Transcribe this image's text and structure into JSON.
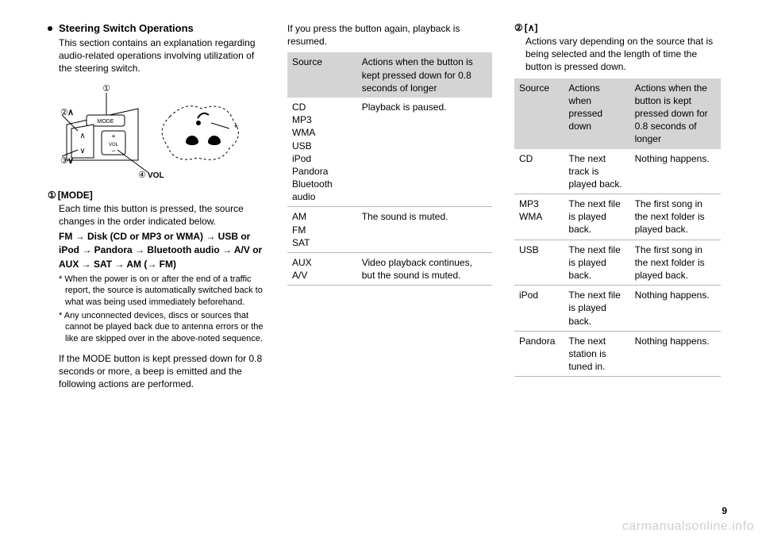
{
  "col1": {
    "heading": "Steering Switch Operations",
    "intro": "This section contains an explanation regarding audio-related operations involving utilization of the steering switch.",
    "diagram": {
      "labels": {
        "n1": "①",
        "n2": "②",
        "n3": "③",
        "n4": "④",
        "vol": "VOL",
        "mode": "MODE",
        "volplus": "+",
        "volminus": "−",
        "volword": "VOL",
        "star": "*"
      }
    },
    "mode": {
      "num": "①",
      "label": "[MODE]",
      "body": "Each time this button is pressed, the source changes in the order indicated below.",
      "sequence": "FM → Disk (CD or MP3 or WMA) → USB or iPod → Pandora → Bluetooth audio → A/V or AUX → SAT → AM (→ FM)",
      "foot1": "* When the power is on or after the end of a traffic report, the source is automatically switched back to what was being used immediately beforehand.",
      "foot2": "* Any unconnected devices, discs or sources that cannot be played back due to antenna errors or the like are skipped over in the above-noted sequence.",
      "para": "If the MODE button is kept pressed down for 0.8 seconds or more, a beep is emitted and the following actions are performed."
    }
  },
  "col2": {
    "intro": "If you press the button again, playback is resumed.",
    "table": {
      "head_source": "Source",
      "head_action": "Actions when the button is kept pressed down for 0.8 seconds of longer",
      "rows": [
        {
          "source": "CD\nMP3\nWMA\nUSB\niPod\nPandora\nBluetooth audio",
          "action": "Playback is paused."
        },
        {
          "source": "AM\nFM\nSAT",
          "action": "The sound is muted."
        },
        {
          "source": "AUX\nA/V",
          "action": "Video playback continues, but the sound is muted."
        }
      ]
    }
  },
  "col3": {
    "num": "②",
    "label": "[∧]",
    "intro": "Actions vary depending on the source that is being selected and the length of time the button is pressed down.",
    "table": {
      "head_source": "Source",
      "head_a1": "Actions when pressed down",
      "head_a2": "Actions when the button is kept pressed down for 0.8 seconds of longer",
      "rows": [
        {
          "s": "CD",
          "a1": "The next track is played back.",
          "a2": "Nothing happens."
        },
        {
          "s": "MP3\nWMA",
          "a1": "The next file is played back.",
          "a2": "The first song in the next folder is played back."
        },
        {
          "s": "USB",
          "a1": "The next file is played back.",
          "a2": "The first song in the next folder is played back."
        },
        {
          "s": "iPod",
          "a1": "The next file is played back.",
          "a2": "Nothing happens."
        },
        {
          "s": "Pandora",
          "a1": "The next station is tuned in.",
          "a2": "Nothing happens."
        }
      ]
    }
  },
  "page_number": "9",
  "watermark": "carmanualsonline.info"
}
